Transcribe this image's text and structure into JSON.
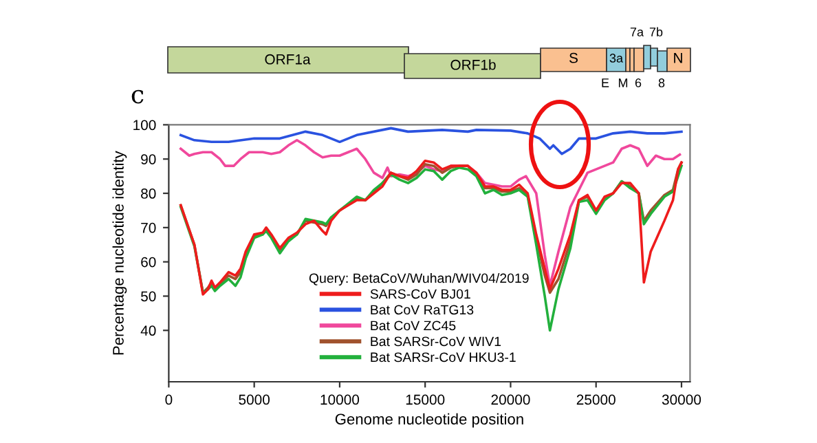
{
  "chart_data": {
    "type": "line",
    "xlabel": "Genome nucleotide position",
    "ylabel": "Percentage nucleotide identity",
    "legend_title": "Query: BetaCoV/Wuhan/WIV04/2019",
    "annotations": [
      "c",
      "ORF1a",
      "ORF1b",
      "S",
      "3a",
      "E",
      "M",
      "6",
      "7a",
      "7b",
      "8",
      "N"
    ],
    "xlim": [
      0,
      30500
    ],
    "xticks": [
      0,
      5000,
      10000,
      15000,
      20000,
      25000,
      30000
    ],
    "ylim": [
      25,
      100
    ],
    "yticks": [
      40,
      50,
      60,
      70,
      80,
      90,
      100
    ],
    "grid": false,
    "legend": "bottom",
    "marker": "none",
    "line_style": "solid",
    "series": [
      {
        "name": "SARS-CoV BJ01",
        "color": "#ee1c1c",
        "x": [
          700,
          1500,
          2000,
          2300,
          2500,
          2700,
          3000,
          3500,
          3900,
          4200,
          4500,
          5000,
          5500,
          5700,
          6000,
          6500,
          7000,
          7500,
          8000,
          8500,
          9000,
          9200,
          9500,
          10000,
          11000,
          11500,
          12000,
          12500,
          13000,
          13500,
          14000,
          14500,
          15000,
          15500,
          16000,
          16500,
          17000,
          17500,
          18000,
          18500,
          19000,
          19500,
          20000,
          20500,
          21000,
          21500,
          22000,
          22300,
          22800,
          23500,
          24000,
          24500,
          25000,
          25500,
          26000,
          26500,
          27000,
          27500,
          27800,
          28200,
          29000,
          29500,
          29800,
          30000
        ],
        "values": [
          76.5,
          65,
          50.5,
          52,
          54.5,
          52.5,
          54,
          57,
          56,
          58,
          63,
          68,
          68.5,
          70,
          68,
          64,
          67,
          68.5,
          71,
          72,
          69,
          68,
          72,
          75,
          78,
          78,
          80,
          82,
          86,
          85,
          84.5,
          86.5,
          89.5,
          89,
          87,
          88,
          88,
          88,
          86,
          82,
          82,
          81,
          81,
          82.5,
          80,
          68,
          58,
          52,
          58,
          68,
          78,
          79.5,
          75,
          79,
          80,
          83,
          83,
          80,
          54,
          63,
          72,
          78,
          87,
          89
        ]
      },
      {
        "name": "Bat CoV RaTG13",
        "color": "#2a52e0",
        "x": [
          700,
          1500,
          2500,
          3500,
          5000,
          6500,
          8000,
          9000,
          10000,
          11000,
          13000,
          14000,
          16000,
          17500,
          18000,
          20000,
          21000,
          21700,
          22300,
          22500,
          23000,
          23500,
          24000,
          25000,
          26000,
          27000,
          28000,
          29000,
          30000
        ],
        "values": [
          97,
          95.5,
          95,
          95,
          96,
          96,
          98,
          97,
          95,
          97,
          99,
          98,
          98.5,
          98,
          98.5,
          98.3,
          97.5,
          96,
          93,
          94,
          91.5,
          93,
          96,
          96,
          97.5,
          98,
          97.5,
          97.5,
          98
        ]
      },
      {
        "name": "Bat CoV ZC45",
        "color": "#f0489c",
        "x": [
          700,
          1200,
          1500,
          2000,
          2500,
          3000,
          3300,
          3800,
          4200,
          4700,
          5500,
          6000,
          6500,
          7000,
          7500,
          8000,
          8500,
          9000,
          9500,
          10000,
          10500,
          11000,
          11500,
          12000,
          12500,
          12800,
          13000,
          13500,
          14000,
          14500,
          15000,
          15500,
          16000,
          16500,
          17500,
          18000,
          18500,
          19500,
          20000,
          20500,
          20900,
          21500,
          22000,
          22300,
          22800,
          23500,
          24000,
          24500,
          25000,
          25500,
          26000,
          26500,
          27000,
          27500,
          28000,
          28500,
          29000,
          29500,
          29900
        ],
        "values": [
          93,
          91,
          91.5,
          92,
          92,
          90,
          88,
          88,
          90,
          92,
          92,
          91.5,
          92,
          94,
          95.5,
          94,
          92,
          90.5,
          91,
          91,
          92,
          93,
          90,
          86,
          84.5,
          87.5,
          85,
          85.5,
          85,
          86,
          88,
          87,
          86.5,
          88,
          88,
          86,
          83,
          82,
          82,
          84,
          85,
          80,
          62,
          53,
          63,
          76,
          81,
          86,
          87,
          88,
          89,
          93,
          94,
          93,
          88,
          91,
          90,
          90,
          91.3
        ]
      },
      {
        "name": "Bat SARSr-CoV WIV1",
        "color": "#a0522d",
        "x": [
          700,
          1500,
          2000,
          2300,
          2500,
          2700,
          3000,
          3500,
          3900,
          4200,
          4500,
          5000,
          5500,
          5700,
          6000,
          6500,
          7000,
          7500,
          8000,
          8500,
          9000,
          9200,
          9500,
          10000,
          11000,
          11500,
          12000,
          12500,
          13000,
          13500,
          14000,
          14500,
          15000,
          15500,
          16000,
          16500,
          17000,
          17500,
          18000,
          18500,
          19000,
          19500,
          20000,
          20500,
          21000,
          21500,
          22000,
          22300,
          22800,
          23500,
          24000,
          24500,
          25000,
          25500,
          26000,
          26500,
          27000,
          27500,
          27800,
          28200,
          29000,
          29500,
          29800,
          30000
        ],
        "values": [
          76.5,
          65,
          51,
          52.5,
          54,
          52,
          53.5,
          56,
          55,
          57,
          62,
          67.5,
          68,
          69.5,
          67.5,
          63.5,
          66.5,
          68,
          72,
          71.5,
          71,
          70.5,
          72.5,
          75,
          78.5,
          78,
          80.5,
          83,
          86,
          85,
          84,
          85.5,
          88.5,
          88,
          86,
          87.5,
          88,
          88,
          85.5,
          81.5,
          81.5,
          80.5,
          80.5,
          81.5,
          79.5,
          67,
          56,
          51,
          55,
          66,
          78,
          79,
          75,
          78.5,
          80,
          83.5,
          82,
          80,
          72,
          75,
          79.5,
          81,
          87,
          89
        ]
      },
      {
        "name": "Bat SARSr-CoV HKU3-1",
        "color": "#22b03c",
        "x": [
          700,
          1500,
          2000,
          2300,
          2500,
          2700,
          3000,
          3500,
          3900,
          4200,
          4500,
          5000,
          5500,
          5700,
          6000,
          6500,
          7000,
          7500,
          8000,
          8500,
          9000,
          9200,
          9500,
          10000,
          11000,
          11500,
          12000,
          12500,
          13000,
          13500,
          14000,
          14500,
          15000,
          15500,
          16000,
          16500,
          17000,
          17500,
          18000,
          18500,
          19000,
          19500,
          20000,
          20500,
          21000,
          21500,
          22000,
          22300,
          22800,
          23500,
          24000,
          24500,
          25000,
          25500,
          26000,
          26500,
          27000,
          27500,
          27800,
          28200,
          29000,
          29500,
          29800,
          30000
        ],
        "values": [
          76,
          64.5,
          51,
          52,
          53,
          51.5,
          53,
          55,
          53,
          55.5,
          61,
          67,
          68,
          69,
          67,
          62.5,
          66,
          68,
          72.5,
          72,
          71.5,
          71,
          73,
          75,
          79,
          78,
          81,
          83,
          85.5,
          84,
          83,
          84.5,
          87,
          86.5,
          84,
          86.5,
          87.5,
          87,
          85,
          80,
          81,
          79.5,
          80,
          81,
          79,
          65,
          50,
          40,
          52,
          64,
          77.5,
          78,
          74,
          78,
          80,
          83.5,
          81.5,
          80,
          71,
          74,
          79,
          80.5,
          85,
          88
        ]
      }
    ]
  }
}
